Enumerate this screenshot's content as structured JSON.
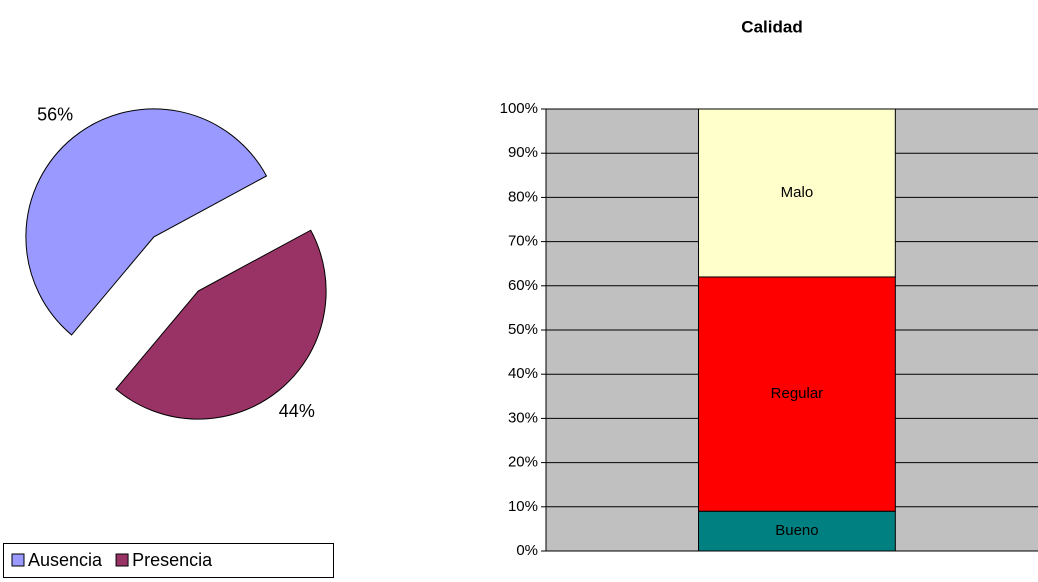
{
  "chart_data": [
    {
      "type": "pie",
      "categories": [
        "Ausencia",
        "Presencia"
      ],
      "values": [
        56,
        44
      ],
      "value_labels": [
        "56%",
        "44%"
      ],
      "colors": [
        "#9999ff",
        "#993366"
      ],
      "legend": "bottom-left"
    },
    {
      "type": "stacked-bar",
      "title": "Calidad",
      "categories": [
        null
      ],
      "series": [
        {
          "name": "Bueno",
          "color": "#008080",
          "values": [
            9
          ]
        },
        {
          "name": "Regular",
          "color": "#ff0000",
          "values": [
            53
          ]
        },
        {
          "name": "Malo",
          "color": "#ffffcc",
          "values": [
            38
          ]
        }
      ],
      "ylim": [
        0,
        100
      ],
      "yticks": [
        {
          "value": 0,
          "label": "0%"
        },
        {
          "value": 10,
          "label": "10%"
        },
        {
          "value": 20,
          "label": "20%"
        },
        {
          "value": 30,
          "label": "30%"
        },
        {
          "value": 40,
          "label": "40%"
        },
        {
          "value": 50,
          "label": "50%"
        },
        {
          "value": 60,
          "label": "60%"
        },
        {
          "value": 70,
          "label": "70%"
        },
        {
          "value": 80,
          "label": "80%"
        },
        {
          "value": 90,
          "label": "90%"
        },
        {
          "value": 100,
          "label": "100%"
        }
      ],
      "grid": true,
      "plot_background": "#c0c0c0"
    }
  ]
}
